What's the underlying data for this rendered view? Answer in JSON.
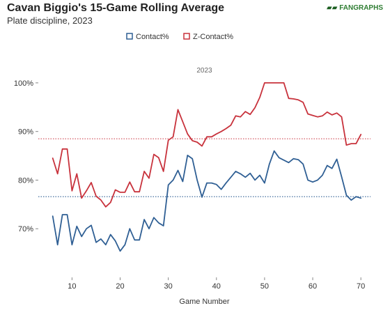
{
  "header": {
    "title": "Cavan Biggio's 15-Game Rolling Average",
    "subtitle": "Plate discipline, 2023",
    "logo_text": "FANGRAPHS"
  },
  "chart_data": {
    "type": "line",
    "title": "Cavan Biggio's 15-Game Rolling Average",
    "subtitle": "Plate discipline, 2023",
    "panel_label": "2023",
    "xlabel": "Game Number",
    "ylabel": "",
    "xlim": [
      3,
      72
    ],
    "ylim": [
      60,
      105
    ],
    "x_ticks": [
      10,
      20,
      30,
      40,
      50,
      60,
      70
    ],
    "y_ticks": [
      70,
      80,
      90,
      100
    ],
    "y_tick_labels": [
      "70%",
      "80%",
      "90%",
      "100%"
    ],
    "legend_position": "top-center",
    "grid": false,
    "series": [
      {
        "name": "Contact%",
        "color": "#2f5f94",
        "x": [
          6,
          7,
          8,
          9,
          10,
          11,
          12,
          13,
          14,
          15,
          16,
          17,
          18,
          19,
          20,
          21,
          22,
          23,
          24,
          25,
          26,
          27,
          28,
          29,
          30,
          31,
          32,
          33,
          34,
          35,
          36,
          37,
          38,
          39,
          40,
          41,
          42,
          43,
          44,
          45,
          46,
          47,
          48,
          49,
          50,
          51,
          52,
          53,
          54,
          55,
          56,
          57,
          58,
          59,
          60,
          61,
          62,
          63,
          64,
          65,
          66,
          67,
          68,
          69,
          70
        ],
        "values": [
          72.6,
          66.7,
          72.9,
          72.9,
          66.7,
          70.5,
          68.4,
          70.0,
          70.7,
          67.2,
          67.9,
          66.7,
          68.8,
          67.5,
          65.4,
          66.7,
          70.0,
          67.7,
          67.7,
          71.9,
          70.0,
          72.3,
          71.2,
          70.6,
          79.0,
          80.0,
          82.0,
          79.7,
          85.1,
          84.4,
          80.0,
          76.5,
          79.4,
          79.4,
          79.1,
          78.1,
          79.4,
          80.6,
          81.8,
          81.3,
          80.6,
          81.4,
          80.0,
          81.0,
          79.4,
          83.3,
          86.0,
          84.6,
          84.1,
          83.6,
          84.4,
          84.2,
          83.3,
          80.0,
          79.6,
          80.0,
          81.0,
          83.0,
          82.4,
          84.3,
          80.7,
          76.9,
          75.9,
          76.6,
          76.3
        ]
      },
      {
        "name": "Z-Contact%",
        "color": "#c8323c",
        "x": [
          6,
          7,
          8,
          9,
          10,
          11,
          12,
          13,
          14,
          15,
          16,
          17,
          18,
          19,
          20,
          21,
          22,
          23,
          24,
          25,
          26,
          27,
          28,
          29,
          30,
          31,
          32,
          33,
          34,
          35,
          36,
          37,
          38,
          39,
          40,
          41,
          42,
          43,
          44,
          45,
          46,
          47,
          48,
          49,
          50,
          51,
          52,
          53,
          54,
          55,
          56,
          57,
          58,
          59,
          60,
          61,
          62,
          63,
          64,
          65,
          66,
          67,
          68,
          69,
          70
        ],
        "values": [
          84.5,
          81.3,
          86.4,
          86.4,
          77.8,
          81.3,
          76.3,
          77.8,
          79.5,
          76.7,
          75.9,
          74.5,
          75.4,
          78.0,
          77.5,
          77.5,
          79.6,
          77.6,
          77.6,
          81.8,
          80.4,
          85.3,
          84.6,
          81.8,
          88.2,
          88.9,
          94.5,
          92.0,
          89.5,
          88.1,
          87.8,
          87.0,
          88.9,
          88.9,
          89.5,
          90.0,
          90.6,
          91.3,
          93.2,
          93.0,
          94.1,
          93.5,
          94.9,
          97.0,
          100.0,
          100.0,
          100.0,
          100.0,
          100.0,
          96.8,
          96.7,
          96.5,
          96.0,
          93.6,
          93.3,
          93.0,
          93.2,
          94.0,
          93.4,
          93.8,
          93.0,
          87.2,
          87.5,
          87.5,
          89.4
        ]
      }
    ],
    "reference_lines": [
      {
        "series": "Z-Contact%",
        "value": 88.5,
        "color": "#c8323c"
      },
      {
        "series": "Contact%",
        "value": 76.6,
        "color": "#2f5f94"
      }
    ]
  }
}
